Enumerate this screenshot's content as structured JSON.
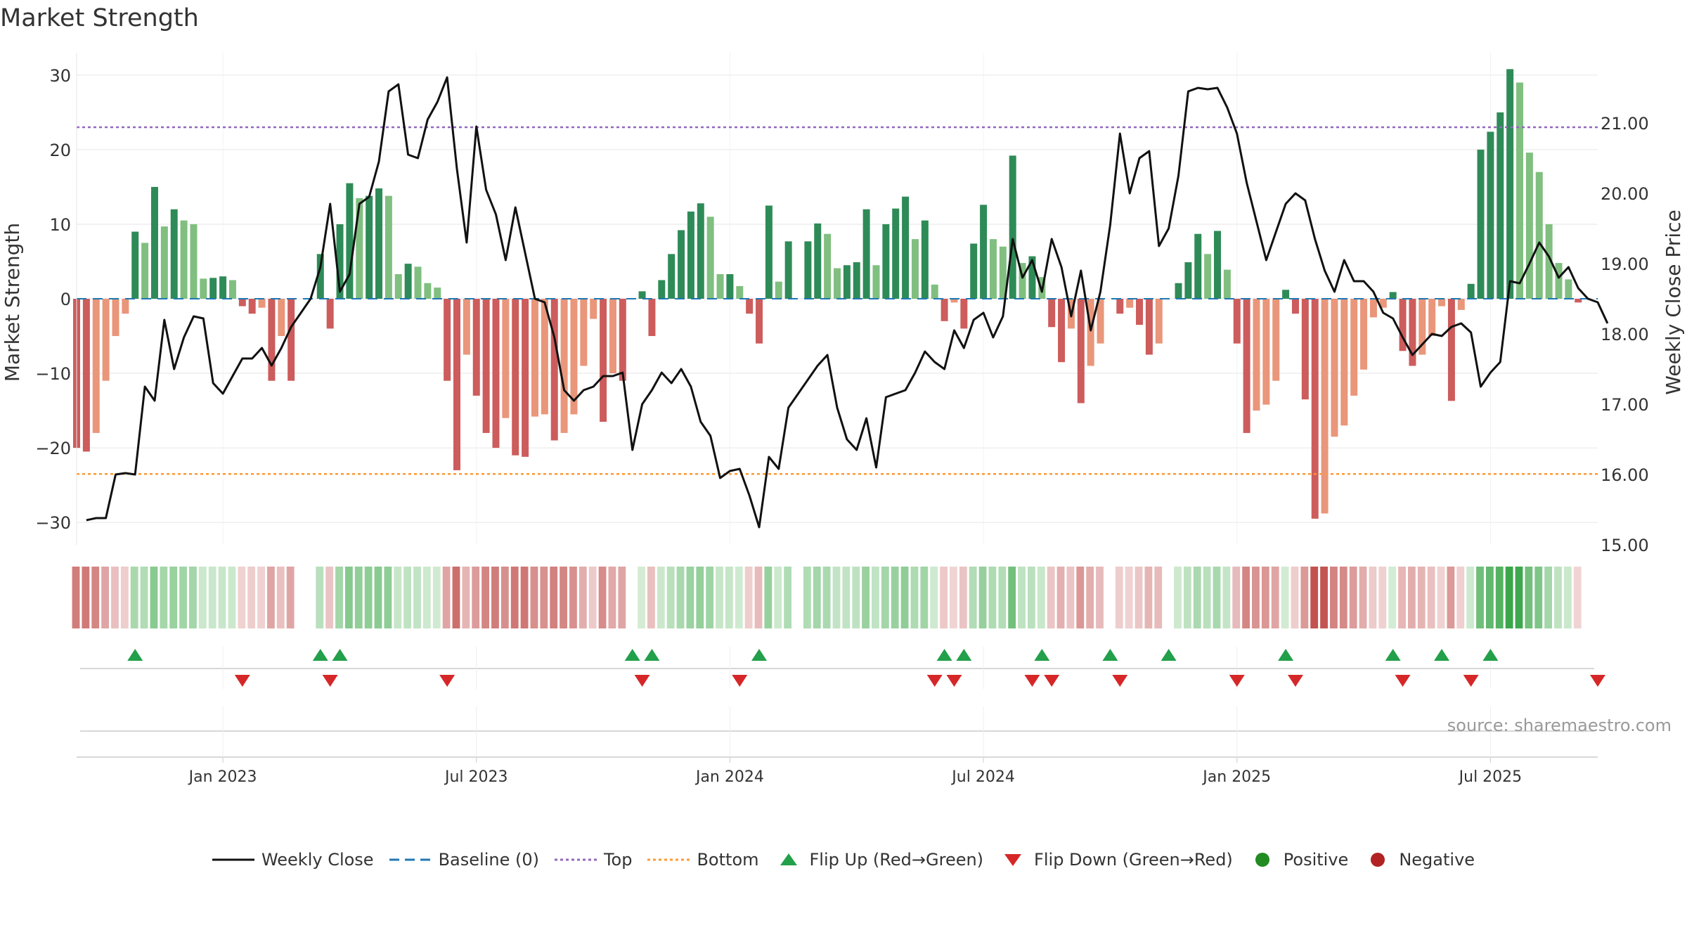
{
  "chart_data": {
    "type": "bar",
    "title": "Market Strength",
    "source": "source: sharemaestro.com",
    "ylabel": "Market Strength",
    "y2label": "Weekly Close Price",
    "ylim": [
      -33,
      33
    ],
    "y2lim": [
      15.0,
      22.0
    ],
    "yticks": [
      -30,
      -20,
      -10,
      0,
      10,
      20,
      30
    ],
    "y2ticks": [
      "15.00",
      "16.00",
      "17.00",
      "18.00",
      "19.00",
      "20.00",
      "21.00"
    ],
    "top_line": 23,
    "bottom_line": -23.5,
    "xrange_weeks": [
      0,
      156
    ],
    "x_ticks": [
      {
        "label": "Jan 2023",
        "week": 15
      },
      {
        "label": "Jul 2023",
        "week": 41
      },
      {
        "label": "Jan 2024",
        "week": 67
      },
      {
        "label": "Jul 2024",
        "week": 93
      },
      {
        "label": "Jan 2025",
        "week": 119
      },
      {
        "label": "Jul 2025",
        "week": 145
      }
    ],
    "strength": [
      -20,
      -20.5,
      -18,
      -11,
      -5,
      -2,
      9,
      7.5,
      15,
      9.7,
      12,
      10.5,
      10,
      2.7,
      2.8,
      3,
      2.5,
      -1,
      -2,
      -1.2,
      -11,
      -5,
      -11,
      0,
      0,
      6,
      -4,
      10,
      15.5,
      13.5,
      13.8,
      14.8,
      13.8,
      3.3,
      4.7,
      4.3,
      2.1,
      1.5,
      -11,
      -23,
      -7.5,
      -13,
      -18,
      -20,
      -16,
      -21,
      -21.2,
      -15.8,
      -15.5,
      -19,
      -18,
      -15.5,
      -9,
      -2.7,
      -16.5,
      -10,
      -11,
      0,
      1,
      -5,
      2.5,
      6,
      9.2,
      11.7,
      12.8,
      11,
      3.3,
      3.3,
      1.7,
      -2,
      -6,
      12.5,
      2.3,
      7.7,
      0,
      7.7,
      10.1,
      8.7,
      4.1,
      4.5,
      4.9,
      12,
      4.5,
      10,
      12.1,
      13.7,
      8,
      10.5,
      1.9,
      -3,
      -0.5,
      -4,
      7.4,
      12.6,
      8,
      7,
      19.2,
      4.8,
      5.7,
      2.9,
      -3.8,
      -8.5,
      -4,
      -14,
      -9,
      -6,
      0,
      -2,
      -1.2,
      -3.5,
      -7.5,
      -6,
      0,
      2.1,
      4.9,
      8.7,
      6,
      9.1,
      3.9,
      -6,
      -18,
      -15,
      -14.2,
      -11,
      1.2,
      -2,
      -13.5,
      -29.5,
      -28.8,
      -18.5,
      -17,
      -13,
      -9.5,
      -2.5,
      -1.2,
      0.9,
      -7,
      -9,
      -7.5,
      -5,
      -1,
      -13.7,
      -1.5,
      2,
      20,
      22.4,
      25,
      30.8,
      29,
      19.6,
      17,
      10,
      4.8,
      2.6,
      -0.5
    ],
    "weekly_close": [
      15.35,
      15.38,
      15.38,
      16.0,
      16.02,
      16.0,
      17.25,
      17.05,
      18.2,
      17.5,
      17.95,
      18.25,
      18.22,
      17.3,
      17.15,
      17.4,
      17.65,
      17.65,
      17.8,
      17.55,
      17.8,
      18.1,
      18.3,
      18.5,
      18.95,
      19.85,
      18.6,
      18.85,
      19.85,
      19.95,
      20.45,
      21.45,
      21.55,
      20.55,
      20.5,
      21.05,
      21.3,
      21.65,
      20.35,
      19.3,
      20.95,
      20.05,
      19.7,
      19.05,
      19.8,
      19.15,
      18.5,
      18.45,
      17.95,
      17.2,
      17.05,
      17.2,
      17.25,
      17.4,
      17.4,
      17.45,
      16.35,
      17.0,
      17.2,
      17.45,
      17.3,
      17.5,
      17.25,
      16.75,
      16.55,
      15.95,
      16.05,
      16.08,
      15.7,
      15.25,
      16.25,
      16.08,
      16.95,
      17.15,
      17.35,
      17.55,
      17.7,
      16.95,
      16.5,
      16.35,
      16.8,
      16.1,
      17.1,
      17.15,
      17.2,
      17.45,
      17.75,
      17.6,
      17.5,
      18.05,
      17.8,
      18.2,
      18.3,
      17.95,
      18.25,
      19.35,
      18.8,
      19.05,
      18.6,
      19.35,
      18.95,
      18.25,
      18.9,
      18.05,
      18.6,
      19.55,
      20.85,
      20.0,
      20.5,
      20.6,
      19.25,
      19.5,
      20.25,
      21.45,
      21.5,
      21.48,
      21.5,
      21.22,
      20.85,
      20.15,
      19.6,
      19.05,
      19.45,
      19.85,
      20.0,
      19.9,
      19.35,
      18.9,
      18.6,
      19.05,
      18.75,
      18.75,
      18.6,
      18.3,
      18.22,
      17.95,
      17.7,
      17.85,
      18.0,
      17.97,
      18.1,
      18.15,
      18.02,
      17.25,
      17.45,
      17.6,
      18.75,
      18.72,
      19.0,
      19.3,
      19.1,
      18.8,
      18.95,
      18.65,
      18.5,
      18.45,
      18.15
    ],
    "flip_up_weeks": [
      6,
      25,
      27,
      57,
      59,
      70,
      89,
      91,
      99,
      106,
      112,
      124,
      135,
      140,
      145
    ],
    "flip_down_weeks": [
      17,
      26,
      38,
      58,
      68,
      88,
      90,
      98,
      100,
      107,
      119,
      125,
      136,
      143,
      156
    ]
  },
  "legend": {
    "weekly_close": "Weekly Close",
    "baseline": "Baseline (0)",
    "top": "Top",
    "bottom": "Bottom",
    "flip_up": "Flip Up (Red→Green)",
    "flip_down": "Flip Down (Green→Red)",
    "positive": "Positive",
    "negative": "Negative"
  },
  "colors": {
    "green_dark": "#2e8b57",
    "green_light": "#80bf80",
    "red_dark": "#cd5c5c",
    "red_light": "#e9967a",
    "close_line": "#111111",
    "baseline": "#1f77b4",
    "top_line": "#9467bd",
    "bottom_line": "#ff9933",
    "flip_up": "#22a04a",
    "flip_down": "#d62728",
    "positive_dot": "#228b22",
    "negative_dot": "#b22222",
    "grid": "#e6e6e6",
    "axis_text": "#333333"
  }
}
